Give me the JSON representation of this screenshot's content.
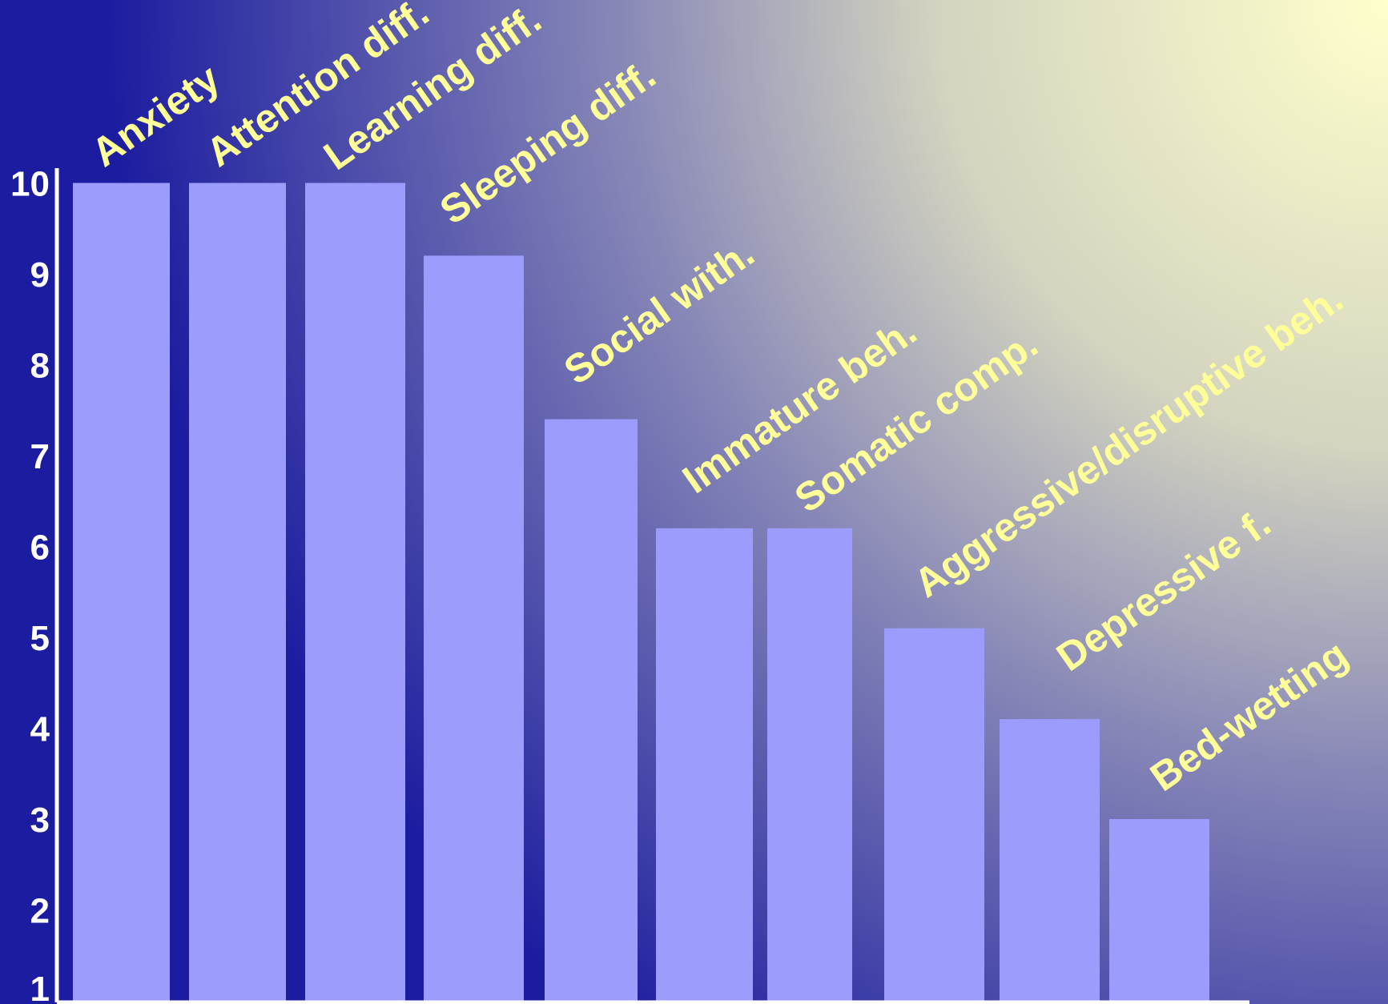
{
  "chart_data": {
    "type": "bar",
    "title": "",
    "xlabel": "",
    "ylabel": "",
    "categories": [
      "Anxiety",
      "Attention diff.",
      "Learning diff.",
      "Sleeping diff.",
      "Social with.",
      "Immature beh.",
      "Somatic comp.",
      "Aggressive/disruptive beh.",
      "Depressive f.",
      "Bed-wetting"
    ],
    "values": [
      10,
      10,
      10,
      9.2,
      7.4,
      6.2,
      6.2,
      5.1,
      4.1,
      3.0
    ],
    "ylim": [
      1,
      10
    ],
    "yticks": [
      "1",
      "2",
      "3",
      "4",
      "5",
      "6",
      "7",
      "8",
      "9",
      "10"
    ],
    "grid": false,
    "legend": "none",
    "colors": {
      "bar": "#9b9cfb",
      "axis": "#ffffff",
      "tick_label": "#ffffff",
      "category_label": "#ffff99",
      "background_dark": "#1c1ca0",
      "background_light": "#ffffcc"
    }
  }
}
